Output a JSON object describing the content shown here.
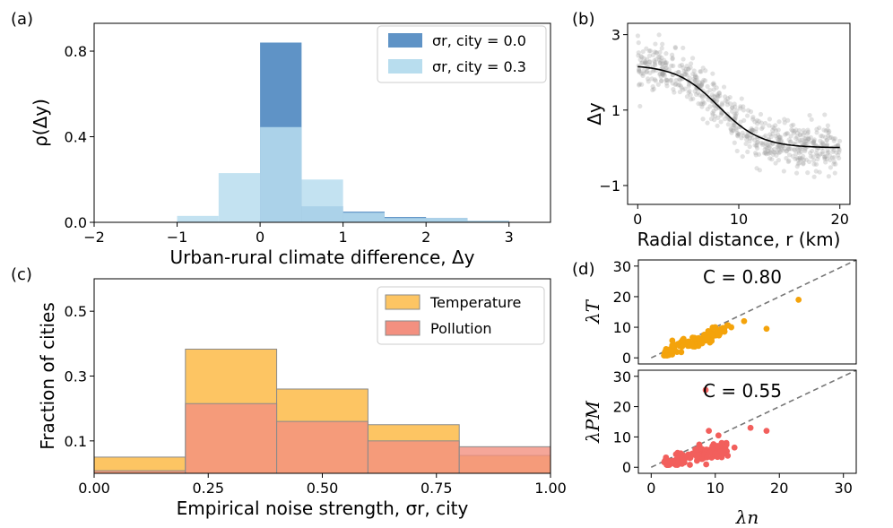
{
  "panels": {
    "a": "(a)",
    "b": "(b)",
    "c": "(c)",
    "d": "(d)"
  },
  "colors": {
    "dark_blue": "#5f93c6",
    "light_blue": "#b8ddee",
    "orange": "#fdc563",
    "red": "#f39080",
    "scatter_orange": "#f4a30b",
    "scatter_red": "#f25f5c",
    "gray_point": "#9e9e9e"
  },
  "chart_data": [
    {
      "id": "a",
      "type": "bar",
      "xlabel": "Urban-rural climate difference, Δy",
      "ylabel": "ρ(Δy)",
      "xlim": [
        -2,
        3.5
      ],
      "ylim": [
        0,
        0.93
      ],
      "xticks": [
        "−2",
        "−1",
        "0",
        "1",
        "2",
        "3"
      ],
      "xtick_values": [
        -2,
        -1,
        0,
        1,
        2,
        3
      ],
      "yticks": [
        "0.0",
        "0.4",
        "0.8"
      ],
      "ytick_values": [
        0,
        0.4,
        0.8
      ],
      "legend_position": "top-right",
      "series": [
        {
          "name": "σr, city = 0.0",
          "bins": [
            [
              0,
              0.5,
              0.84
            ],
            [
              0.5,
              1.0,
              0.075
            ],
            [
              1.0,
              1.5,
              0.05
            ],
            [
              1.5,
              2.0,
              0.025
            ],
            [
              2.0,
              2.5,
              0.02
            ],
            [
              2.5,
              3.0,
              0.007
            ]
          ]
        },
        {
          "name": "σr, city = 0.3",
          "bins": [
            [
              -1.0,
              -0.5,
              0.03
            ],
            [
              -0.5,
              0.0,
              0.23
            ],
            [
              0.0,
              0.5,
              0.445
            ],
            [
              0.5,
              1.0,
              0.2
            ],
            [
              1.0,
              1.5,
              0.045
            ],
            [
              1.5,
              2.0,
              0.02
            ],
            [
              2.0,
              2.5,
              0.02
            ],
            [
              2.5,
              3.0,
              0.007
            ]
          ]
        }
      ]
    },
    {
      "id": "b",
      "type": "scatter",
      "xlabel": "Radial distance, r (km)",
      "ylabel": "Δy",
      "xlim": [
        -1,
        21
      ],
      "ylim": [
        -1.5,
        3.3
      ],
      "xticks": [
        "0",
        "10",
        "20"
      ],
      "xtick_values": [
        0,
        10,
        20
      ],
      "yticks": [
        "−1",
        "1",
        "3"
      ],
      "ytick_values": [
        -1,
        1,
        3
      ],
      "curve": {
        "form": "logistic",
        "offset": 0.0,
        "amplitude": 2.2,
        "center": 8.0,
        "scale": 2.1,
        "x_range": [
          0,
          20
        ]
      },
      "points": {
        "count": 650,
        "x_range": [
          0,
          20
        ],
        "noise": 0.3
      }
    },
    {
      "id": "c",
      "type": "bar",
      "xlabel": "Empirical noise strength, σr, city",
      "ylabel": "Fraction of cities",
      "xlim": [
        0,
        1
      ],
      "ylim": [
        0,
        0.6
      ],
      "xticks": [
        "0.00",
        "0.25",
        "0.50",
        "0.75",
        "1.00"
      ],
      "xtick_values": [
        0,
        0.25,
        0.5,
        0.75,
        1.0
      ],
      "yticks": [
        "0.1",
        "0.3",
        "0.5"
      ],
      "ytick_values": [
        0.1,
        0.3,
        0.5
      ],
      "legend_position": "top-right",
      "series": [
        {
          "name": "Temperature",
          "bins": [
            [
              0.0,
              0.2,
              0.05
            ],
            [
              0.2,
              0.4,
              0.383
            ],
            [
              0.4,
              0.6,
              0.26
            ],
            [
              0.6,
              0.8,
              0.15
            ],
            [
              0.8,
              1.0,
              0.055
            ]
          ]
        },
        {
          "name": "Pollution",
          "bins": [
            [
              0.0,
              0.2,
              0.008
            ],
            [
              0.2,
              0.4,
              0.215
            ],
            [
              0.4,
              0.6,
              0.16
            ],
            [
              0.6,
              0.8,
              0.1
            ],
            [
              0.8,
              1.0,
              0.082
            ]
          ]
        }
      ]
    },
    {
      "id": "d_top",
      "type": "scatter",
      "ylabel": "λT",
      "xlim": [
        -2,
        32
      ],
      "ylim": [
        -2,
        32
      ],
      "yticks": [
        "0",
        "10",
        "20",
        "30"
      ],
      "ytick_values": [
        0,
        10,
        20,
        30
      ],
      "annotation": "C = 0.80",
      "diagonal": true,
      "outliers": [
        [
          23,
          19
        ],
        [
          18,
          9.5
        ],
        [
          14.5,
          12
        ],
        [
          12.5,
          10
        ]
      ],
      "points": {
        "count": 120,
        "x_range": [
          2,
          12
        ],
        "slope": 0.8,
        "noise": 1.6
      }
    },
    {
      "id": "d_bottom",
      "type": "scatter",
      "xlabel": "λn",
      "ylabel": "λPM",
      "xlim": [
        -2,
        32
      ],
      "ylim": [
        -2,
        32
      ],
      "xticks": [
        "0",
        "10",
        "20",
        "30"
      ],
      "xtick_values": [
        0,
        10,
        20,
        30
      ],
      "yticks": [
        "0",
        "10",
        "20",
        "30"
      ],
      "ytick_values": [
        0,
        10,
        20,
        30
      ],
      "annotation": "C = 0.55",
      "diagonal": true,
      "outliers": [
        [
          8.5,
          25.5
        ],
        [
          18,
          12
        ],
        [
          15.5,
          13
        ],
        [
          13,
          6.5
        ],
        [
          10.5,
          10.5
        ],
        [
          11,
          8
        ],
        [
          9,
          12
        ]
      ],
      "points": {
        "count": 130,
        "x_range": [
          2,
          12
        ],
        "slope": 0.55,
        "noise": 2.2
      }
    }
  ]
}
